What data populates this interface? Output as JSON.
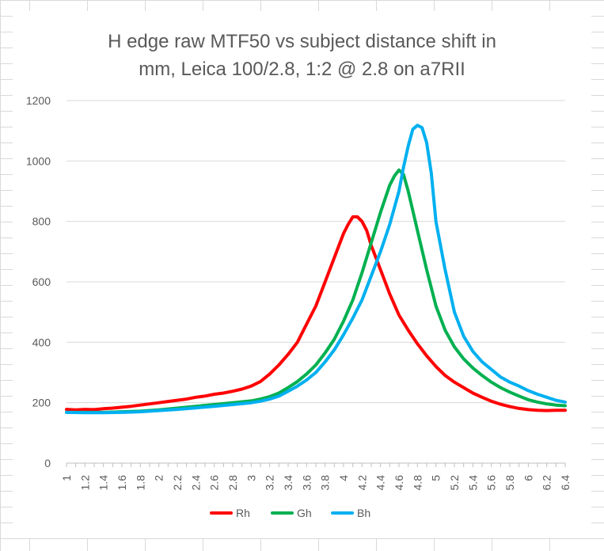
{
  "chart_data": {
    "type": "line",
    "title_lines": [
      "H edge raw MTF50 vs subject distance shift in",
      "mm, Leica 100/2.8, 1:2 @ 2.8 on a7RII"
    ],
    "xlabel": "",
    "ylabel": "",
    "ylim": [
      0,
      1200
    ],
    "y_ticks": [
      0,
      200,
      400,
      600,
      800,
      1000,
      1200
    ],
    "x_ticks": [
      "1",
      "1.2",
      "1.4",
      "1.6",
      "1.8",
      "2",
      "2.2",
      "2.4",
      "2.6",
      "2.8",
      "3",
      "3.2",
      "3.4",
      "3.6",
      "3.8",
      "4",
      "4.2",
      "4.4",
      "4.6",
      "4.8",
      "5",
      "5.2",
      "5.4",
      "5.6",
      "5.8",
      "6",
      "6.2",
      "6.4"
    ],
    "xlim": [
      1,
      6.4
    ],
    "grid": "horizontal",
    "legend": "bottom",
    "series": [
      {
        "name": "Rh",
        "color": "#ff0000",
        "points": [
          [
            1.0,
            178
          ],
          [
            1.1,
            176
          ],
          [
            1.2,
            178
          ],
          [
            1.3,
            177
          ],
          [
            1.4,
            180
          ],
          [
            1.5,
            182
          ],
          [
            1.6,
            185
          ],
          [
            1.7,
            188
          ],
          [
            1.8,
            192
          ],
          [
            1.9,
            196
          ],
          [
            2.0,
            200
          ],
          [
            2.1,
            204
          ],
          [
            2.2,
            208
          ],
          [
            2.3,
            212
          ],
          [
            2.4,
            218
          ],
          [
            2.5,
            222
          ],
          [
            2.6,
            228
          ],
          [
            2.7,
            232
          ],
          [
            2.8,
            238
          ],
          [
            2.9,
            245
          ],
          [
            3.0,
            255
          ],
          [
            3.1,
            270
          ],
          [
            3.2,
            295
          ],
          [
            3.3,
            325
          ],
          [
            3.4,
            360
          ],
          [
            3.5,
            400
          ],
          [
            3.6,
            460
          ],
          [
            3.7,
            520
          ],
          [
            3.8,
            600
          ],
          [
            3.9,
            680
          ],
          [
            4.0,
            760
          ],
          [
            4.05,
            790
          ],
          [
            4.1,
            815
          ],
          [
            4.15,
            815
          ],
          [
            4.2,
            800
          ],
          [
            4.25,
            770
          ],
          [
            4.3,
            720
          ],
          [
            4.4,
            640
          ],
          [
            4.5,
            560
          ],
          [
            4.6,
            490
          ],
          [
            4.7,
            440
          ],
          [
            4.8,
            395
          ],
          [
            4.9,
            355
          ],
          [
            5.0,
            320
          ],
          [
            5.1,
            290
          ],
          [
            5.2,
            268
          ],
          [
            5.3,
            250
          ],
          [
            5.4,
            232
          ],
          [
            5.5,
            218
          ],
          [
            5.6,
            205
          ],
          [
            5.7,
            195
          ],
          [
            5.8,
            187
          ],
          [
            5.9,
            181
          ],
          [
            6.0,
            177
          ],
          [
            6.1,
            175
          ],
          [
            6.2,
            174
          ],
          [
            6.3,
            175
          ],
          [
            6.4,
            175
          ]
        ]
      },
      {
        "name": "Gh",
        "color": "#00b050",
        "points": [
          [
            1.0,
            168
          ],
          [
            1.2,
            168
          ],
          [
            1.4,
            168
          ],
          [
            1.6,
            170
          ],
          [
            1.8,
            172
          ],
          [
            2.0,
            176
          ],
          [
            2.2,
            182
          ],
          [
            2.4,
            188
          ],
          [
            2.6,
            194
          ],
          [
            2.8,
            200
          ],
          [
            3.0,
            206
          ],
          [
            3.1,
            212
          ],
          [
            3.2,
            220
          ],
          [
            3.3,
            232
          ],
          [
            3.4,
            250
          ],
          [
            3.5,
            270
          ],
          [
            3.6,
            295
          ],
          [
            3.7,
            325
          ],
          [
            3.8,
            365
          ],
          [
            3.9,
            410
          ],
          [
            4.0,
            470
          ],
          [
            4.1,
            540
          ],
          [
            4.2,
            630
          ],
          [
            4.3,
            730
          ],
          [
            4.4,
            830
          ],
          [
            4.5,
            920
          ],
          [
            4.55,
            950
          ],
          [
            4.6,
            970
          ],
          [
            4.65,
            955
          ],
          [
            4.7,
            900
          ],
          [
            4.8,
            770
          ],
          [
            4.9,
            640
          ],
          [
            5.0,
            520
          ],
          [
            5.1,
            440
          ],
          [
            5.2,
            385
          ],
          [
            5.3,
            345
          ],
          [
            5.4,
            315
          ],
          [
            5.5,
            290
          ],
          [
            5.6,
            268
          ],
          [
            5.7,
            250
          ],
          [
            5.8,
            235
          ],
          [
            5.9,
            222
          ],
          [
            6.0,
            210
          ],
          [
            6.1,
            202
          ],
          [
            6.2,
            196
          ],
          [
            6.3,
            192
          ],
          [
            6.4,
            190
          ]
        ]
      },
      {
        "name": "Bh",
        "color": "#00b0f0",
        "points": [
          [
            1.0,
            168
          ],
          [
            1.2,
            167
          ],
          [
            1.4,
            167
          ],
          [
            1.6,
            168
          ],
          [
            1.8,
            170
          ],
          [
            2.0,
            174
          ],
          [
            2.2,
            178
          ],
          [
            2.4,
            183
          ],
          [
            2.6,
            188
          ],
          [
            2.8,
            194
          ],
          [
            3.0,
            200
          ],
          [
            3.1,
            205
          ],
          [
            3.2,
            212
          ],
          [
            3.3,
            222
          ],
          [
            3.4,
            238
          ],
          [
            3.5,
            255
          ],
          [
            3.6,
            275
          ],
          [
            3.7,
            300
          ],
          [
            3.8,
            335
          ],
          [
            3.9,
            375
          ],
          [
            4.0,
            425
          ],
          [
            4.1,
            480
          ],
          [
            4.2,
            540
          ],
          [
            4.3,
            620
          ],
          [
            4.4,
            700
          ],
          [
            4.5,
            790
          ],
          [
            4.6,
            900
          ],
          [
            4.65,
            980
          ],
          [
            4.7,
            1050
          ],
          [
            4.75,
            1105
          ],
          [
            4.8,
            1118
          ],
          [
            4.85,
            1110
          ],
          [
            4.9,
            1060
          ],
          [
            4.95,
            960
          ],
          [
            5.0,
            800
          ],
          [
            5.1,
            640
          ],
          [
            5.2,
            500
          ],
          [
            5.3,
            420
          ],
          [
            5.4,
            370
          ],
          [
            5.5,
            335
          ],
          [
            5.6,
            310
          ],
          [
            5.7,
            285
          ],
          [
            5.8,
            268
          ],
          [
            5.9,
            255
          ],
          [
            6.0,
            240
          ],
          [
            6.1,
            228
          ],
          [
            6.2,
            218
          ],
          [
            6.3,
            208
          ],
          [
            6.4,
            202
          ]
        ]
      }
    ]
  }
}
